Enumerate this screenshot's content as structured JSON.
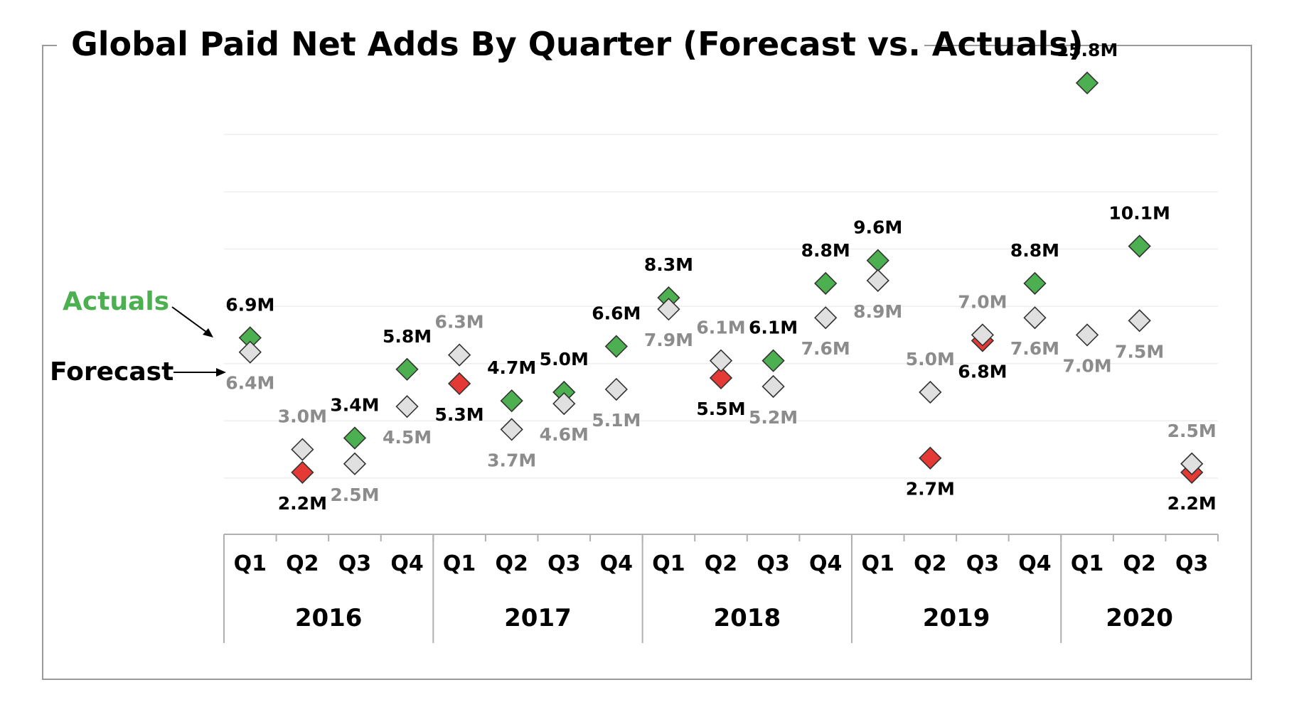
{
  "chart_data": {
    "type": "scatter",
    "title": "Global Paid Net Adds By Quarter (Forecast vs. Actuals)",
    "categories": [
      "Q1",
      "Q2",
      "Q3",
      "Q4",
      "Q1",
      "Q2",
      "Q3",
      "Q4",
      "Q1",
      "Q2",
      "Q3",
      "Q4",
      "Q1",
      "Q2",
      "Q3",
      "Q4",
      "Q1",
      "Q2",
      "Q3"
    ],
    "years": [
      {
        "label": "2016",
        "count": 4
      },
      {
        "label": "2017",
        "count": 4
      },
      {
        "label": "2018",
        "count": 4
      },
      {
        "label": "2019",
        "count": 4
      },
      {
        "label": "2020",
        "count": 3
      }
    ],
    "ylim": [
      0,
      17
    ],
    "grid": true,
    "series": [
      {
        "name": "Actuals",
        "values": [
          6.9,
          2.2,
          3.4,
          5.8,
          5.3,
          4.7,
          5.0,
          6.6,
          8.3,
          5.5,
          6.1,
          8.8,
          9.6,
          2.7,
          6.8,
          8.8,
          15.8,
          10.1,
          2.2
        ],
        "labels": [
          "6.9M",
          "2.2M",
          "3.4M",
          "5.8M",
          "5.3M",
          "4.7M",
          "5.0M",
          "6.6M",
          "8.3M",
          "5.5M",
          "6.1M",
          "8.8M",
          "9.6M",
          "2.7M",
          "6.8M",
          "8.8M",
          "15.8M",
          "10.1M",
          "2.2M"
        ],
        "beat_color": "#4caf50",
        "miss_color": "#e53935"
      },
      {
        "name": "Forecast",
        "values": [
          6.4,
          3.0,
          2.5,
          4.5,
          6.3,
          3.7,
          4.6,
          5.1,
          7.9,
          6.1,
          5.2,
          7.6,
          8.9,
          5.0,
          7.0,
          7.6,
          7.0,
          7.5,
          2.5
        ],
        "labels": [
          "6.4M",
          "3.0M",
          "2.5M",
          "4.5M",
          "6.3M",
          "3.7M",
          "4.6M",
          "5.1M",
          "7.9M",
          "6.1M",
          "5.2M",
          "7.6M",
          "8.9M",
          "5.0M",
          "7.0M",
          "7.6M",
          "7.0M",
          "7.5M",
          "2.5M"
        ],
        "color": "#e0e0e0"
      }
    ],
    "legend": {
      "actuals": "Actuals",
      "forecast": "Forecast"
    }
  }
}
